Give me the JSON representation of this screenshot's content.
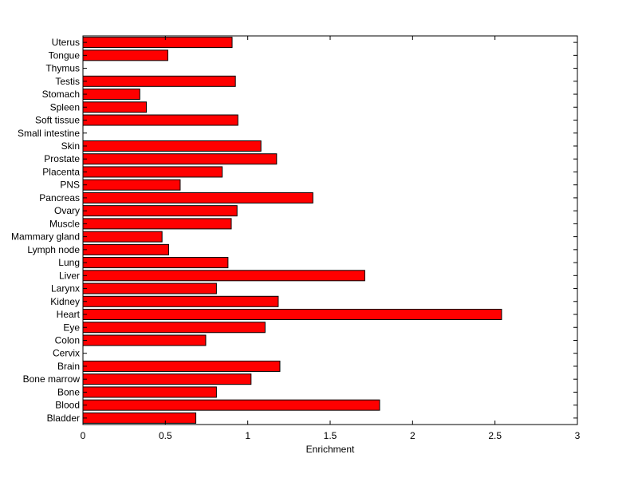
{
  "colors": {
    "bar_fill": "#ff0000",
    "bar_stroke": "#000000",
    "axis": "#000000"
  },
  "chart_data": {
    "type": "bar",
    "orientation": "horizontal",
    "title": "",
    "xlabel": "Enrichment",
    "ylabel": "",
    "xlim": [
      0,
      3
    ],
    "xticks": [
      0,
      0.5,
      1,
      1.5,
      2,
      2.5,
      3
    ],
    "xtick_labels": [
      "0",
      "0.5",
      "1",
      "1.5",
      "2",
      "2.5",
      "3"
    ],
    "grid": false,
    "legend": "none",
    "categories": [
      "Uterus",
      "Tongue",
      "Thymus",
      "Testis",
      "Stomach",
      "Spleen",
      "Soft tissue",
      "Small intestine",
      "Skin",
      "Prostate",
      "Placenta",
      "PNS",
      "Pancreas",
      "Ovary",
      "Muscle",
      "Mammary gland",
      "Lymph node",
      "Lung",
      "Liver",
      "Larynx",
      "Kidney",
      "Heart",
      "Eye",
      "Colon",
      "Cervix",
      "Brain",
      "Bone marrow",
      "Bone",
      "Blood",
      "Bladder"
    ],
    "values": [
      0.905,
      0.515,
      0,
      0.925,
      0.345,
      0.385,
      0.94,
      0,
      1.08,
      1.175,
      0.845,
      0.59,
      1.395,
      0.935,
      0.9,
      0.48,
      0.52,
      0.88,
      1.71,
      0.81,
      1.185,
      2.54,
      1.105,
      0.745,
      0,
      1.195,
      1.02,
      0.81,
      1.8,
      0.685
    ]
  }
}
